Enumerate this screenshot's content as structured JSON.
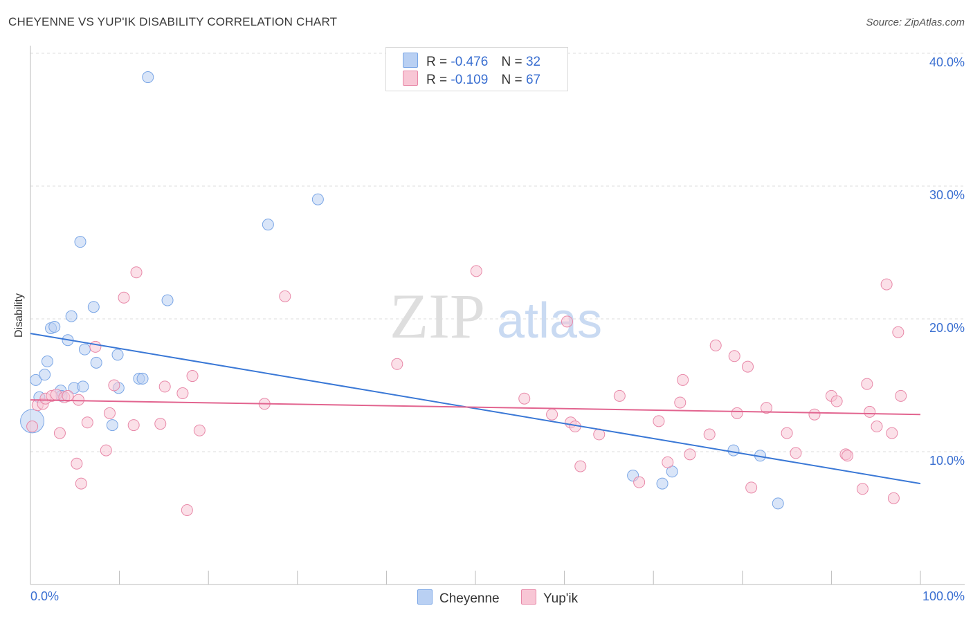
{
  "header": {
    "title": "CHEYENNE VS YUP'IK DISABILITY CORRELATION CHART",
    "source": "Source: ZipAtlas.com"
  },
  "legend": {
    "r_label": "R =",
    "n_label": "N =",
    "series": [
      {
        "name": "Cheyenne",
        "r": "-0.476",
        "n": "32",
        "color": "#7aa6e6",
        "fill": "#b9d0f3"
      },
      {
        "name": "Yup'ik",
        "r": "-0.109",
        "n": "67",
        "color": "#e888a8",
        "fill": "#f8c6d5"
      }
    ]
  },
  "watermark": {
    "zip": "ZIP",
    "atlas": "atlas"
  },
  "chart_data": {
    "type": "scatter",
    "title": "CHEYENNE VS YUP'IK DISABILITY CORRELATION CHART",
    "ylabel": "Disability",
    "xlabel": "",
    "xlim": [
      0,
      100
    ],
    "ylim": [
      0,
      40
    ],
    "x_tick_labels": [
      "0.0%",
      "100.0%"
    ],
    "y_ticks": [
      10,
      20,
      30,
      40
    ],
    "y_tick_labels": [
      "10.0%",
      "20.0%",
      "30.0%",
      "40.0%"
    ],
    "grid": true,
    "series": [
      {
        "name": "Cheyenne",
        "color": "#3a78d6",
        "trend": {
          "x": [
            0,
            100
          ],
          "y": [
            18.9,
            7.6
          ]
        },
        "points": [
          [
            0.2,
            12.3
          ],
          [
            0.6,
            15.4
          ],
          [
            1.0,
            14.1
          ],
          [
            1.6,
            15.8
          ],
          [
            1.9,
            16.8
          ],
          [
            2.3,
            19.3
          ],
          [
            2.7,
            19.4
          ],
          [
            3.4,
            14.6
          ],
          [
            3.5,
            14.2
          ],
          [
            4.2,
            18.4
          ],
          [
            4.6,
            20.2
          ],
          [
            4.9,
            14.8
          ],
          [
            5.6,
            25.8
          ],
          [
            5.9,
            14.9
          ],
          [
            6.1,
            17.7
          ],
          [
            7.1,
            20.9
          ],
          [
            7.4,
            16.7
          ],
          [
            9.2,
            12.0
          ],
          [
            9.8,
            17.3
          ],
          [
            9.9,
            14.8
          ],
          [
            12.2,
            15.5
          ],
          [
            12.6,
            15.5
          ],
          [
            13.2,
            38.2
          ],
          [
            15.4,
            21.4
          ],
          [
            26.7,
            27.1
          ],
          [
            32.3,
            29.0
          ],
          [
            67.7,
            8.2
          ],
          [
            71.0,
            7.6
          ],
          [
            72.1,
            8.5
          ],
          [
            79.0,
            10.1
          ],
          [
            82.0,
            9.7
          ],
          [
            84.0,
            6.1
          ]
        ]
      },
      {
        "name": "Yup'ik",
        "color": "#e2648f",
        "trend": {
          "x": [
            0,
            100
          ],
          "y": [
            13.9,
            12.8
          ]
        },
        "points": [
          [
            0.2,
            11.9
          ],
          [
            0.8,
            13.5
          ],
          [
            1.4,
            13.6
          ],
          [
            1.7,
            14.0
          ],
          [
            2.4,
            14.2
          ],
          [
            2.9,
            14.3
          ],
          [
            3.3,
            11.4
          ],
          [
            3.8,
            14.1
          ],
          [
            4.2,
            14.2
          ],
          [
            5.2,
            9.1
          ],
          [
            5.4,
            13.9
          ],
          [
            5.7,
            7.6
          ],
          [
            6.4,
            12.2
          ],
          [
            7.3,
            17.9
          ],
          [
            8.5,
            10.1
          ],
          [
            8.9,
            12.9
          ],
          [
            9.4,
            15.0
          ],
          [
            10.5,
            21.6
          ],
          [
            11.6,
            12.0
          ],
          [
            11.9,
            23.5
          ],
          [
            14.6,
            12.1
          ],
          [
            15.1,
            14.9
          ],
          [
            17.1,
            14.4
          ],
          [
            17.6,
            5.6
          ],
          [
            18.2,
            15.7
          ],
          [
            19.0,
            11.6
          ],
          [
            26.3,
            13.6
          ],
          [
            28.6,
            21.7
          ],
          [
            41.2,
            16.6
          ],
          [
            50.1,
            23.6
          ],
          [
            55.5,
            14.0
          ],
          [
            58.6,
            12.8
          ],
          [
            60.3,
            19.8
          ],
          [
            60.7,
            12.2
          ],
          [
            61.2,
            11.9
          ],
          [
            61.8,
            8.9
          ],
          [
            63.9,
            11.3
          ],
          [
            66.2,
            14.2
          ],
          [
            68.4,
            7.7
          ],
          [
            70.6,
            12.3
          ],
          [
            71.6,
            9.2
          ],
          [
            73.0,
            13.7
          ],
          [
            73.3,
            15.4
          ],
          [
            74.1,
            9.8
          ],
          [
            76.3,
            11.3
          ],
          [
            77.0,
            18.0
          ],
          [
            79.1,
            17.2
          ],
          [
            79.4,
            12.9
          ],
          [
            80.6,
            16.4
          ],
          [
            81.0,
            7.3
          ],
          [
            82.7,
            13.3
          ],
          [
            85.0,
            11.4
          ],
          [
            86.0,
            9.9
          ],
          [
            88.1,
            12.8
          ],
          [
            90.0,
            14.2
          ],
          [
            90.6,
            13.8
          ],
          [
            91.6,
            9.8
          ],
          [
            91.8,
            9.7
          ],
          [
            93.5,
            7.2
          ],
          [
            94.0,
            15.1
          ],
          [
            94.3,
            13.0
          ],
          [
            95.1,
            11.9
          ],
          [
            96.2,
            22.6
          ],
          [
            96.8,
            11.4
          ],
          [
            97.0,
            6.5
          ],
          [
            97.5,
            19.0
          ],
          [
            97.8,
            14.2
          ]
        ]
      }
    ]
  }
}
